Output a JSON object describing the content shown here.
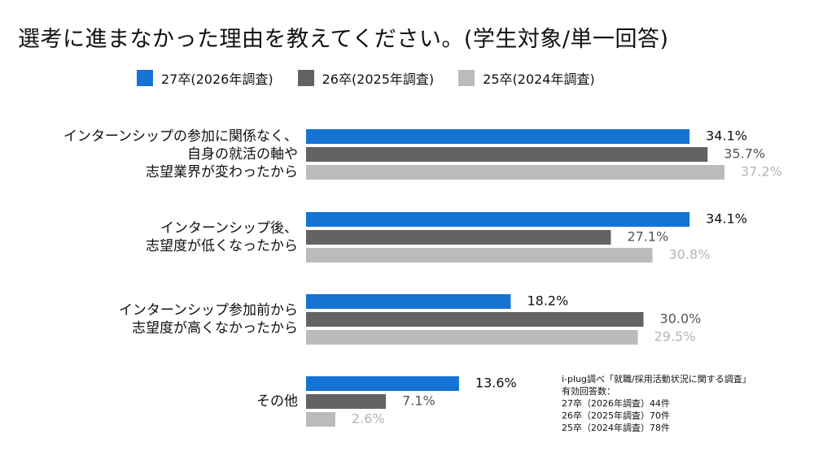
{
  "title": "選考に進まなかった理由を教えてください。(学生対象/単一回答)",
  "colors": {
    "s27": "#1473d3",
    "s26": "#636363",
    "s25": "#bbbbbb"
  },
  "chart_data": {
    "type": "bar",
    "orientation": "horizontal",
    "xlim": [
      0,
      40
    ],
    "categories": [
      [
        "インターンシップの参加に関係なく、",
        "自身の就活の軸や",
        "志望業界が変わったから"
      ],
      [
        "インターンシップ後、",
        "志望度が低くなったから"
      ],
      [
        "インターンシップ参加前から",
        "志望度が高くなかったから"
      ],
      [
        "その他"
      ]
    ],
    "series": [
      {
        "name": "27卒(2026年調査)",
        "values": [
          34.1,
          34.1,
          18.2,
          13.6
        ],
        "labels": [
          "34.1%",
          "34.1%",
          "18.2%",
          "13.6%"
        ]
      },
      {
        "name": "26卒(2025年調査)",
        "values": [
          35.7,
          27.1,
          30.0,
          7.1
        ],
        "labels": [
          "35.7%",
          "27.1%",
          "30.0%",
          "7.1%"
        ]
      },
      {
        "name": "25卒(2024年調査)",
        "values": [
          37.2,
          30.8,
          29.5,
          2.6
        ],
        "labels": [
          "37.2%",
          "30.8%",
          "29.5%",
          "2.6%"
        ]
      }
    ],
    "legend": "top"
  },
  "source": {
    "line1": "i-plug調べ「就職/採用活動状況に関する調査」",
    "line2": "有効回答数：",
    "line3": "27卒（2026年調査）44件",
    "line4": "26卒（2025年調査）70件",
    "line5": "25卒（2024年調査）78件"
  }
}
